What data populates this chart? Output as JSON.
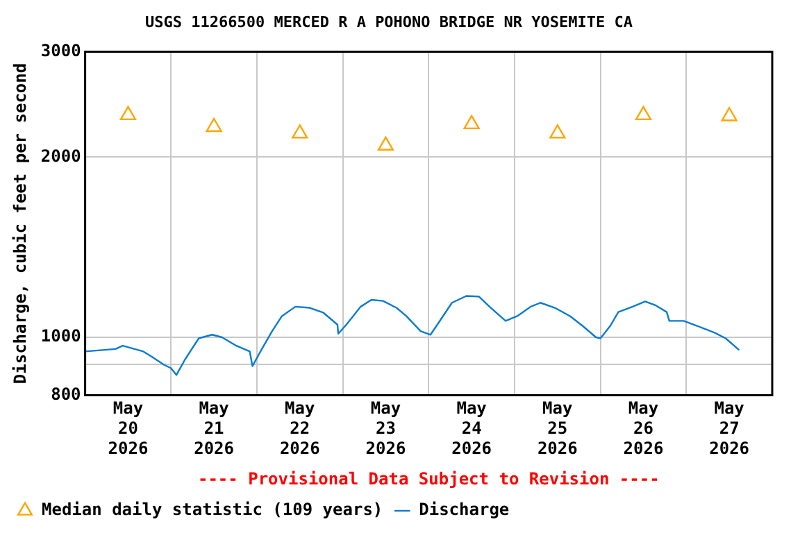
{
  "chart_data": {
    "type": "line",
    "title": "USGS 11266500 MERCED R A POHONO BRIDGE NR YOSEMITE CA",
    "ylabel": "Discharge, cubic feet per second",
    "annotations": [
      "---- Provisional Data Subject to Revision ----"
    ],
    "log": "y",
    "grid": true,
    "legend": "bottom",
    "xlim": [
      "2026-05-20T00:00",
      "2026-05-28T00:00"
    ],
    "xticks": [
      {
        "value": "2026-05-20T12:00",
        "label": "May\n20\n2026"
      },
      {
        "value": "2026-05-21T00:00",
        "label": null
      },
      {
        "value": "2026-05-21T12:00",
        "label": "May\n21\n2026"
      },
      {
        "value": "2026-05-22T00:00",
        "label": null
      },
      {
        "value": "2026-05-22T12:00",
        "label": "May\n22\n2026"
      },
      {
        "value": "2026-05-23T00:00",
        "label": null
      },
      {
        "value": "2026-05-23T12:00",
        "label": "May\n23\n2026"
      },
      {
        "value": "2026-05-24T00:00",
        "label": null
      },
      {
        "value": "2026-05-24T12:00",
        "label": "May\n24\n2026"
      },
      {
        "value": "2026-05-25T00:00",
        "label": null
      },
      {
        "value": "2026-05-25T12:00",
        "label": "May\n25\n2026"
      },
      {
        "value": "2026-05-26T00:00",
        "label": null
      },
      {
        "value": "2026-05-26T12:00",
        "label": "May\n26\n2026"
      },
      {
        "value": "2026-05-27T00:00",
        "label": null
      },
      {
        "value": "2026-05-27T12:00",
        "label": "May\n27\n2026"
      }
    ],
    "ylim": [
      800,
      3000
    ],
    "yticks": [
      800,
      {
        "value": 900,
        "label": null
      },
      1000,
      2000,
      3000
    ],
    "series": [
      {
        "name": "Median daily statistic (109 years)",
        "type": "scatter",
        "marker": "triangle",
        "color": "#ffa500",
        "x": [
          "2026-05-20T12:00",
          "2026-05-21T12:00",
          "2026-05-22T12:00",
          "2026-05-23T12:00",
          "2026-05-24T12:00",
          "2026-05-25T12:00",
          "2026-05-26T12:00",
          "2026-05-27T12:00"
        ],
        "values": [
          2350,
          2245,
          2190,
          2090,
          2270,
          2190,
          2350,
          2340
        ]
      },
      {
        "name": "Discharge",
        "type": "line",
        "marker": "none",
        "color": "#0a7bd0",
        "x": [
          "2026-05-20T00:00",
          "2026-05-20T08:30",
          "2026-05-20T10:30",
          "2026-05-20T16:15",
          "2026-05-20T19:00",
          "2026-05-20T22:00",
          "2026-05-21T00:00",
          "2026-05-21T01:30",
          "2026-05-21T04:00",
          "2026-05-21T07:45",
          "2026-05-21T11:30",
          "2026-05-21T14:15",
          "2026-05-21T18:15",
          "2026-05-21T22:00",
          "2026-05-21T22:45",
          "2026-05-22T01:00",
          "2026-05-22T04:15",
          "2026-05-22T07:00",
          "2026-05-22T10:45",
          "2026-05-22T14:45",
          "2026-05-22T18:30",
          "2026-05-22T22:30",
          "2026-05-22T22:45",
          "2026-05-23T01:00",
          "2026-05-23T05:00",
          "2026-05-23T08:00",
          "2026-05-23T11:15",
          "2026-05-23T15:00",
          "2026-05-23T17:45",
          "2026-05-23T21:45",
          "2026-05-24T00:30",
          "2026-05-24T02:45",
          "2026-05-24T06:30",
          "2026-05-24T10:30",
          "2026-05-24T14:00",
          "2026-05-24T17:00",
          "2026-05-24T21:30",
          "2026-05-25T00:45",
          "2026-05-25T04:30",
          "2026-05-25T07:15",
          "2026-05-25T11:15",
          "2026-05-25T15:30",
          "2026-05-25T19:00",
          "2026-05-25T22:45",
          "2026-05-26T00:00",
          "2026-05-26T02:45",
          "2026-05-26T05:00",
          "2026-05-26T09:00",
          "2026-05-26T12:30",
          "2026-05-26T15:30",
          "2026-05-26T18:30",
          "2026-05-26T19:15",
          "2026-05-26T23:15",
          "2026-05-27T03:00",
          "2026-05-27T08:00",
          "2026-05-27T11:00",
          "2026-05-27T14:45"
        ],
        "values": [
          947,
          956,
          968,
          947,
          925,
          900,
          888,
          865,
          920,
          996,
          1010,
          1000,
          968,
          947,
          895,
          947,
          1024,
          1085,
          1125,
          1120,
          1100,
          1050,
          1014,
          1050,
          1125,
          1155,
          1150,
          1120,
          1085,
          1024,
          1010,
          1057,
          1142,
          1172,
          1170,
          1125,
          1065,
          1085,
          1125,
          1142,
          1120,
          1085,
          1045,
          1000,
          996,
          1045,
          1102,
          1125,
          1148,
          1130,
          1102,
          1065,
          1065,
          1045,
          1017,
          996,
          952
        ]
      }
    ]
  }
}
